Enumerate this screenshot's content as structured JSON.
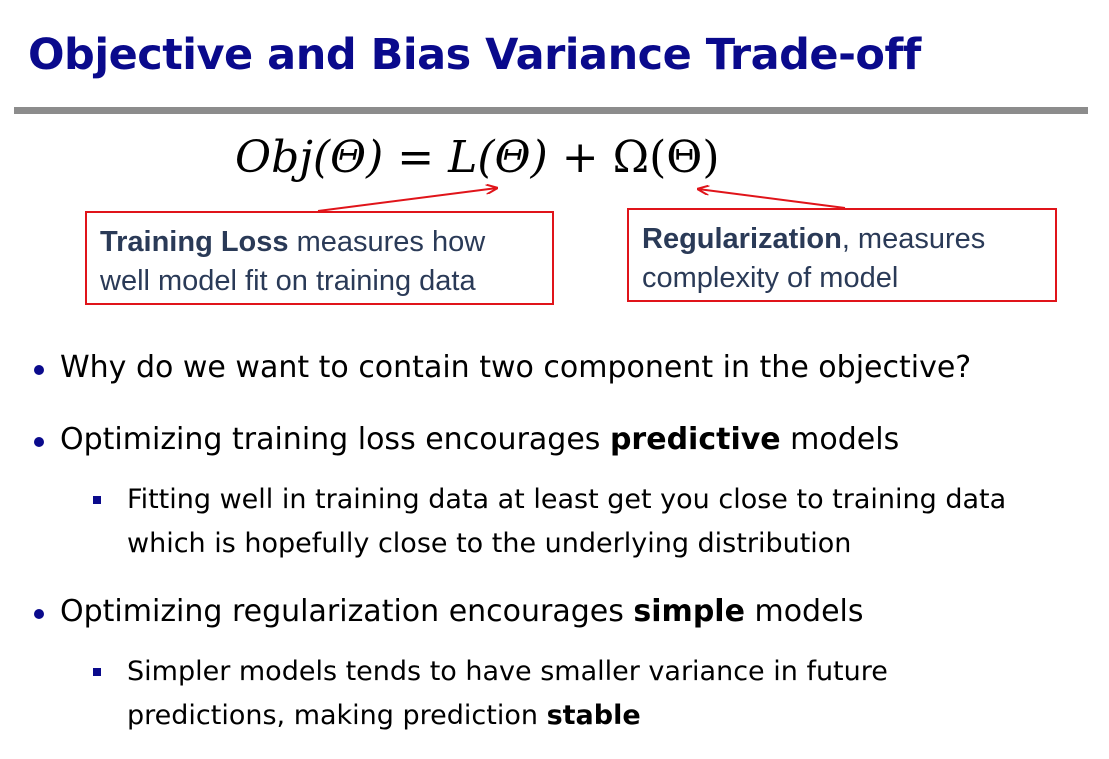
{
  "title": "Objective and Bias Variance Trade-off",
  "formula": {
    "lhs": "Obj(Θ) = ",
    "loss": "L(Θ)",
    "plus": " + ",
    "reg": "Ω(Θ)"
  },
  "callouts": {
    "loss_bold": "Training Loss",
    "loss_rest": " measures how",
    "loss_line2": "well model fit on training data",
    "reg_bold": "Regularization",
    "reg_rest": ", measures",
    "reg_line2": "complexity of model",
    "border_color": "#e0141a"
  },
  "bullets": {
    "q1": "Why do we want to contain two component in the objective?",
    "b2_pre": "Optimizing training loss encourages ",
    "b2_bold": "predictive",
    "b2_post": " models",
    "b2_sub_line1": "Fitting well in training data at least get you close to training data",
    "b2_sub_line2": "which is hopefully close to the underlying distribution",
    "b3_pre": "Optimizing regularization encourages ",
    "b3_bold": "simple",
    "b3_post": " models",
    "b3_sub_line1": "Simpler models tends to have smaller variance in future",
    "b3_sub_line2_pre": "predictions, making prediction ",
    "b3_sub_line2_bold": "stable"
  },
  "colors": {
    "title": "#0a0a8c",
    "rule": "#8c8c8c",
    "callout_text": "#2a3a57"
  }
}
